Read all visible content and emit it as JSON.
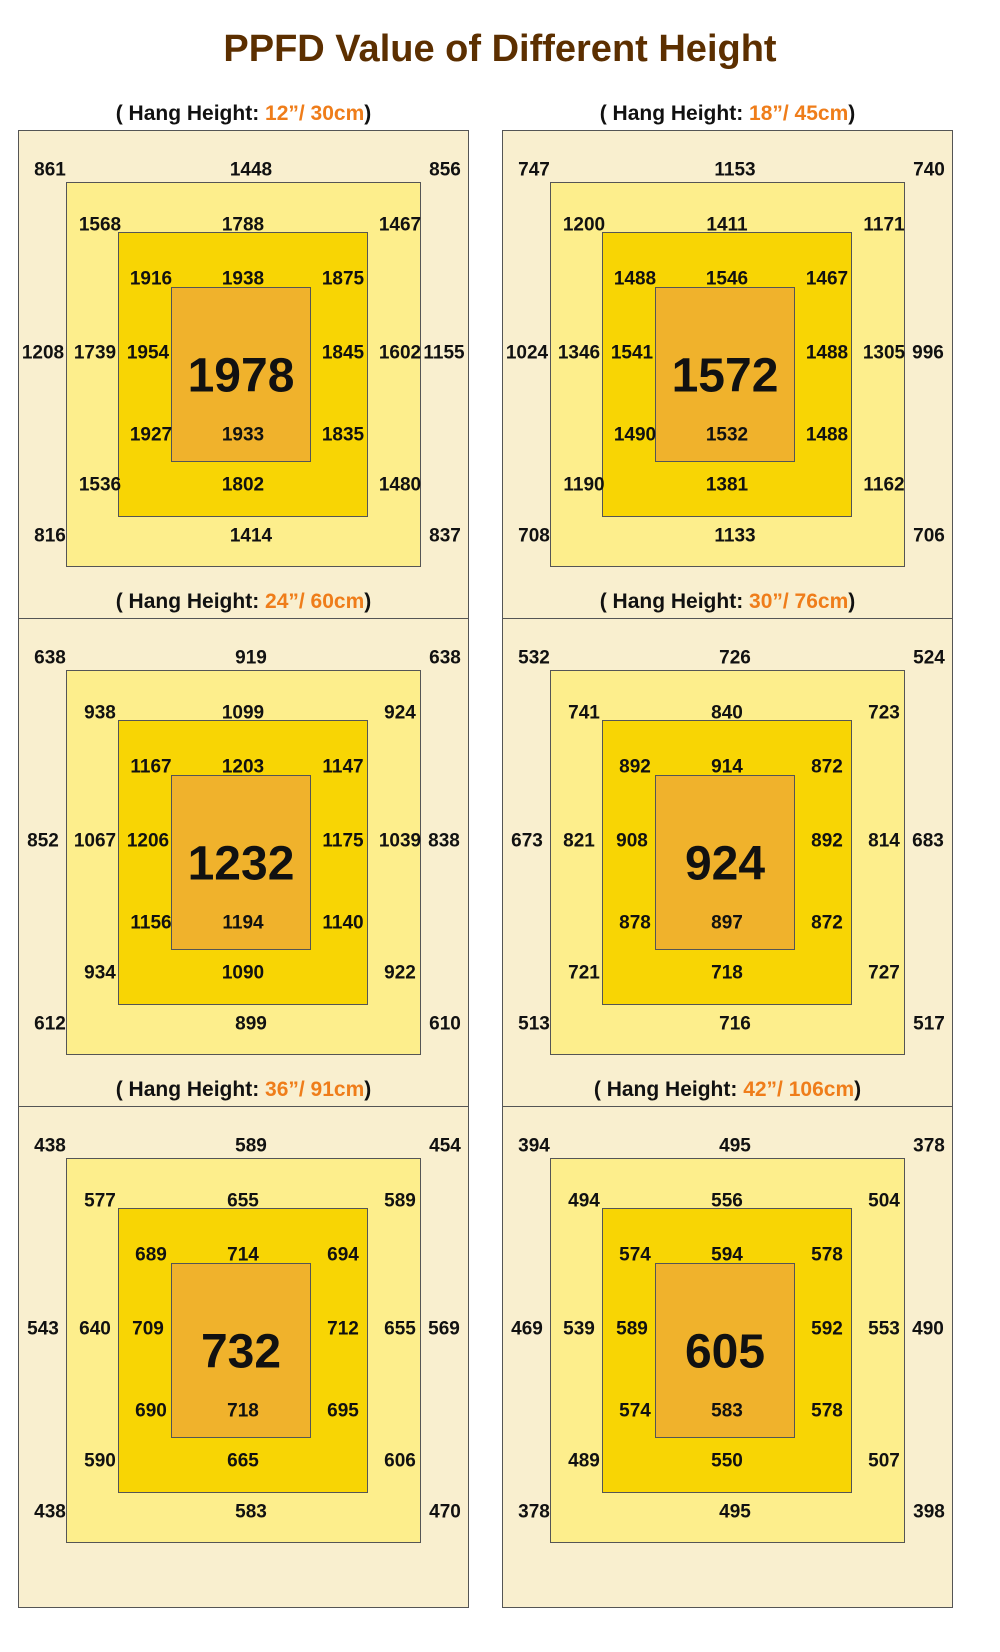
{
  "title": "PPFD Value of Different Height",
  "colors": {
    "title": "#5c2f00",
    "highlight": "#ef7d1a",
    "ring1": "#f9efcf",
    "ring2": "#fdee8c",
    "ring3": "#f8d504",
    "center": "#f0b22c",
    "border": "#555555"
  },
  "chart_data": [
    {
      "type": "heatmap",
      "label_prefix": "( Hang Height: ",
      "height": "12”/ 30cm",
      "label_suffix": ")",
      "outer": [
        "861",
        "1448",
        "856",
        "1208",
        "1155",
        "816",
        "1414",
        "837"
      ],
      "middle": [
        "1568",
        "1788",
        "1467",
        "1739",
        "1602",
        "1536",
        "1802",
        "1480"
      ],
      "inner": [
        "1916",
        "1938",
        "1875",
        "1954",
        "1845",
        "1927",
        "1933",
        "1835"
      ],
      "center": "1978"
    },
    {
      "type": "heatmap",
      "label_prefix": "( Hang Height: ",
      "height": "18”/ 45cm",
      "label_suffix": ")",
      "outer": [
        "747",
        "1153",
        "740",
        "1024",
        "996",
        "708",
        "1133",
        "706"
      ],
      "middle": [
        "1200",
        "1411",
        "1171",
        "1346",
        "1305",
        "1190",
        "1381",
        "1162"
      ],
      "inner": [
        "1488",
        "1546",
        "1467",
        "1541",
        "1488",
        "1490",
        "1532",
        "1488"
      ],
      "center": "1572"
    },
    {
      "type": "heatmap",
      "label_prefix": "( Hang Height: ",
      "height": "24”/ 60cm",
      "label_suffix": ")",
      "outer": [
        "638",
        "919",
        "638",
        "852",
        "838",
        "612",
        "899",
        "610"
      ],
      "middle": [
        "938",
        "1099",
        "924",
        "1067",
        "1039",
        "934",
        "1090",
        "922"
      ],
      "inner": [
        "1167",
        "1203",
        "1147",
        "1206",
        "1175",
        "1156",
        "1194",
        "1140"
      ],
      "center": "1232"
    },
    {
      "type": "heatmap",
      "label_prefix": "( Hang Height: ",
      "height": "30”/ 76cm",
      "label_suffix": ")",
      "outer": [
        "532",
        "726",
        "524",
        "673",
        "683",
        "513",
        "716",
        "517"
      ],
      "middle": [
        "741",
        "840",
        "723",
        "821",
        "814",
        "721",
        "718",
        "727"
      ],
      "inner": [
        "892",
        "914",
        "872",
        "908",
        "892",
        "878",
        "897",
        "872"
      ],
      "center": "924"
    },
    {
      "type": "heatmap",
      "label_prefix": "( Hang Height: ",
      "height": "36”/ 91cm",
      "label_suffix": ")",
      "outer": [
        "438",
        "589",
        "454",
        "543",
        "569",
        "438",
        "583",
        "470"
      ],
      "middle": [
        "577",
        "655",
        "589",
        "640",
        "655",
        "590",
        "665",
        "606"
      ],
      "inner": [
        "689",
        "714",
        "694",
        "709",
        "712",
        "690",
        "718",
        "695"
      ],
      "center": "732"
    },
    {
      "type": "heatmap",
      "label_prefix": "( Hang Height: ",
      "height": "42”/ 106cm",
      "label_suffix": ")",
      "outer": [
        "394",
        "495",
        "378",
        "469",
        "490",
        "378",
        "495",
        "398"
      ],
      "middle": [
        "494",
        "556",
        "504",
        "539",
        "553",
        "489",
        "550",
        "507"
      ],
      "inner": [
        "574",
        "594",
        "578",
        "589",
        "592",
        "574",
        "583",
        "578"
      ],
      "center": "605"
    }
  ]
}
